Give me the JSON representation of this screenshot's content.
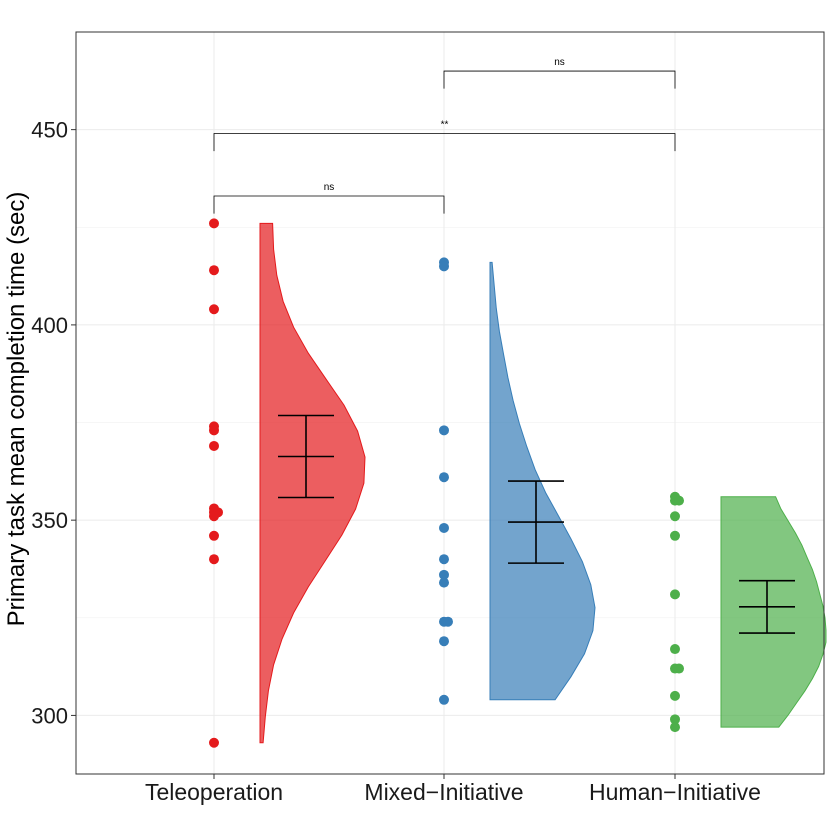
{
  "chart_data": {
    "type": "raincloud",
    "title": "",
    "xlabel": "",
    "ylabel": "Primary task mean completion time (sec)",
    "ylim": [
      285,
      475
    ],
    "yticks": [
      300,
      350,
      400,
      450
    ],
    "grid": true,
    "categories": [
      "Teleoperation",
      "Mixed−Initiative",
      "Human−Initiative"
    ],
    "series": [
      {
        "name": "Teleoperation",
        "color": "#E41A1C",
        "points": [
          426,
          414,
          404,
          374,
          373,
          369,
          353,
          352,
          352,
          351,
          346,
          340,
          293
        ],
        "mean": 366.3,
        "ci": [
          355.8,
          376.8
        ],
        "density_range": [
          293,
          426
        ],
        "density": [
          0.03,
          0.05,
          0.08,
          0.13,
          0.21,
          0.32,
          0.46,
          0.62,
          0.78,
          0.91,
          0.99,
          1.0,
          0.93,
          0.8,
          0.63,
          0.46,
          0.32,
          0.22,
          0.16,
          0.13,
          0.12
        ]
      },
      {
        "name": "Mixed−Initiative",
        "color": "#377EB8",
        "points": [
          416,
          415,
          373,
          361,
          348,
          340,
          336,
          334,
          324,
          324,
          319,
          304
        ],
        "mean": 349.5,
        "ci": [
          339.0,
          360.0
        ],
        "density_range": [
          304,
          416
        ],
        "density": [
          0.62,
          0.77,
          0.9,
          0.98,
          1.0,
          0.96,
          0.88,
          0.77,
          0.65,
          0.53,
          0.43,
          0.35,
          0.28,
          0.22,
          0.17,
          0.13,
          0.09,
          0.06,
          0.04,
          0.02
        ]
      },
      {
        "name": "Human−Initiative",
        "color": "#4DAF4A",
        "points": [
          356,
          355,
          355,
          351,
          346,
          331,
          317,
          312,
          312,
          305,
          299,
          297
        ],
        "mean": 327.8,
        "ci": [
          321.1,
          334.5
        ],
        "density_range": [
          297,
          356
        ],
        "density": [
          0.55,
          0.64,
          0.72,
          0.8,
          0.87,
          0.93,
          0.97,
          1.0,
          1.0,
          0.99,
          0.97,
          0.94,
          0.91,
          0.87,
          0.82,
          0.77,
          0.71,
          0.64,
          0.57,
          0.52
        ]
      }
    ],
    "comparisons": [
      {
        "from": 0,
        "to": 1,
        "label": "ns",
        "y": 433,
        "tip": 428.5
      },
      {
        "from": 0,
        "to": 2,
        "label": "**",
        "y": 449,
        "tip": 444.5
      },
      {
        "from": 1,
        "to": 2,
        "label": "ns",
        "y": 465,
        "tip": 460.5
      }
    ]
  }
}
